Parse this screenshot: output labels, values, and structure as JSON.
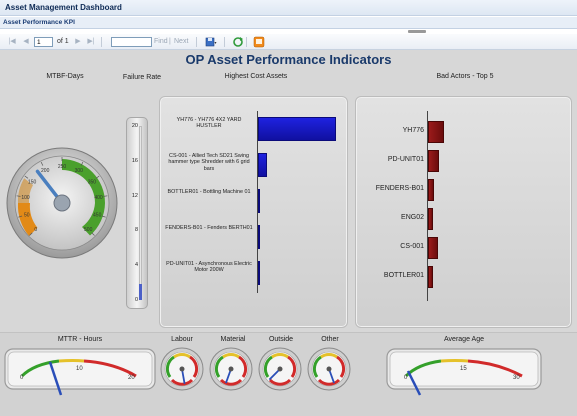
{
  "app": {
    "title": "Asset Management Dashboard",
    "subtitle": "Asset Performance KPI"
  },
  "toolbar": {
    "page_value": "1",
    "page_of": "of 1",
    "find_label": "Find",
    "next_label": "Next",
    "separator": "|",
    "icons": [
      "first-page-icon",
      "previous-page-icon",
      "next-page-icon",
      "last-page-icon",
      "export-icon",
      "refresh-icon",
      "print-icon"
    ]
  },
  "report": {
    "title": "OP Asset Performance Indicators",
    "labels": {
      "mtbf": "MTBF-Days",
      "failure_rate": "Failure Rate",
      "highest_cost": "Highest Cost Assets",
      "bad_actors": "Bad Actors - Top 5",
      "mttr": "MTTR - Hours",
      "labour": "Labour",
      "material": "Material",
      "outside": "Outside",
      "other": "Other",
      "average_age": "Average Age"
    }
  },
  "gauges": {
    "mtbf": {
      "ticks": [
        "0",
        "50",
        "100",
        "150",
        "200",
        "250",
        "300",
        "350",
        "400",
        "450",
        "500"
      ],
      "value": 180
    },
    "failure_rate": {
      "ticks": [
        "0",
        "4",
        "8",
        "12",
        "16",
        "20"
      ],
      "value": 1.8
    },
    "mttr": {
      "ticks": [
        "0",
        "10",
        "20"
      ],
      "value": 6
    },
    "average_age": {
      "ticks": [
        "0",
        "15",
        "30"
      ],
      "value": 2
    }
  },
  "chart_data": [
    {
      "type": "bar",
      "title": "Highest Cost Assets",
      "categories": [
        "YH776 - YH776 4X2 YARD HUSTLER",
        "CS-001 - Allied Tech SD21 Swing hammer type Shredder with 6 grid bars",
        "BOTTLER01 - Bottling Machine 01",
        "FENDERS-B01 - Fenders BERTH01",
        "PD-UNIT01 - Asynchronous Electric Motor 200W"
      ],
      "values": [
        100,
        12,
        0.5,
        0.5,
        0.3
      ],
      "color": "#1f22e0"
    },
    {
      "type": "bar",
      "title": "Bad Actors - Top 5",
      "categories": [
        "YH776",
        "PD-UNIT01",
        "FENDERS-B01",
        "ENG02",
        "CS-001",
        "BOTTLER01"
      ],
      "values": [
        20,
        14,
        7,
        6,
        13,
        6
      ],
      "color": "#8b1414"
    }
  ]
}
